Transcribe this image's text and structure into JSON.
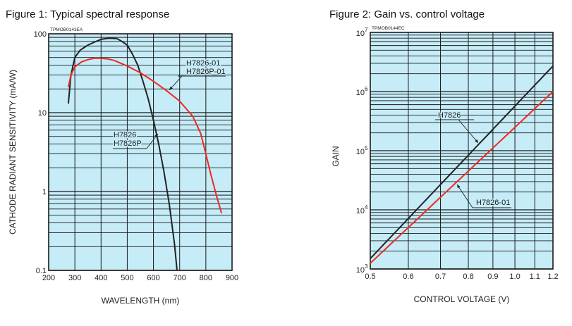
{
  "chart_data": [
    {
      "type": "line",
      "title": "Figure 1: Typical spectral response",
      "code": "TPMOB0143EA",
      "xlabel": "WAVELENGTH (nm)",
      "ylabel": "CATHODE RADIANT SENSITIVITY (mA/W)",
      "xscale": "linear",
      "yscale": "log",
      "xlim": [
        200,
        900
      ],
      "ylim": [
        0.1,
        100
      ],
      "xticks": [
        "200",
        "300",
        "400",
        "500",
        "600",
        "700",
        "800",
        "900"
      ],
      "yticks": [
        "0.1",
        "1",
        "10",
        "100"
      ],
      "grid": true,
      "background": "#c6ecf8",
      "series": [
        {
          "name": "H7826 / H7826P",
          "labels": [
            "H7826",
            "H7826P"
          ],
          "color": "#222222",
          "x": [
            275,
            285,
            300,
            320,
            350,
            380,
            400,
            430,
            460,
            480,
            500,
            520,
            540,
            560,
            580,
            600,
            620,
            640,
            660,
            680,
            690
          ],
          "y": [
            13,
            30,
            50,
            62,
            72,
            80,
            85,
            88,
            87,
            80,
            72,
            55,
            40,
            25,
            15,
            8,
            4,
            1.8,
            0.7,
            0.22,
            0.1
          ]
        },
        {
          "name": "H7826-01 / H7826P-01",
          "labels": [
            "H7826-01",
            "H7826P-01"
          ],
          "color": "#ee2a1f",
          "x": [
            275,
            285,
            300,
            325,
            350,
            375,
            400,
            425,
            450,
            500,
            550,
            600,
            650,
            700,
            750,
            780,
            800,
            820,
            840,
            860
          ],
          "y": [
            21,
            30,
            38,
            44,
            47,
            49,
            49,
            48,
            46,
            39,
            32,
            25,
            19,
            14,
            9,
            5.5,
            3,
            1.6,
            0.9,
            0.53
          ]
        }
      ]
    },
    {
      "type": "line",
      "title": "Figure 2: Gain vs. control voltage",
      "code": "TPMOB0144EC",
      "xlabel": "CONTROL VOLTAGE (V)",
      "ylabel": "GAIN",
      "xscale": "log",
      "yscale": "log",
      "xlim": [
        0.5,
        1.2
      ],
      "ylim": [
        1000,
        10000000
      ],
      "xticks": [
        "0.5",
        "0.6",
        "0.7",
        "0.8",
        "0.9",
        "1.0",
        "1.1",
        "1.2"
      ],
      "yticks": [
        {
          "base": "10",
          "exp": "3"
        },
        {
          "base": "10",
          "exp": "4"
        },
        {
          "base": "10",
          "exp": "5"
        },
        {
          "base": "10",
          "exp": "6"
        },
        {
          "base": "10",
          "exp": "7"
        }
      ],
      "grid": true,
      "background": "#c6ecf8",
      "series": [
        {
          "name": "H7826",
          "color": "#222222",
          "x": [
            0.5,
            1.2
          ],
          "y": [
            1500,
            2700000
          ]
        },
        {
          "name": "H7826-01",
          "color": "#ee2a1f",
          "x": [
            0.5,
            1.2
          ],
          "y": [
            1250,
            1000000
          ]
        }
      ]
    }
  ]
}
